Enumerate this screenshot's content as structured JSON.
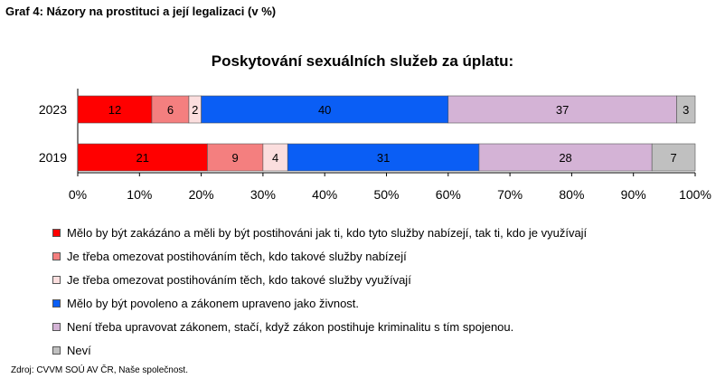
{
  "figure_title": "Graf 4: Názory na prostituci a její legalizaci (v %)",
  "source": "Zdroj: CVVM SOÚ AV ČR, Naše společnost.",
  "chart_data": {
    "type": "bar",
    "orientation": "horizontal",
    "stacked": true,
    "title": "Poskytování sexuálních služeb za úplatu:",
    "categories": [
      "2023",
      "2019"
    ],
    "series": [
      {
        "name": "Mělo by být zakázáno a měli by být postihováni jak ti, kdo tyto služby nabízejí, tak ti, kdo je využívají",
        "color": "#ff0000",
        "values": [
          12,
          21
        ]
      },
      {
        "name": "Je třeba omezovat postihováním těch, kdo takové služby nabízejí",
        "color": "#f47f7f",
        "values": [
          6,
          9
        ]
      },
      {
        "name": "Je třeba omezovat postihováním těch, kdo takové služby využívají",
        "color": "#fbdede",
        "values": [
          2,
          4
        ]
      },
      {
        "name": "Mělo by být povoleno a zákonem upraveno jako živnost.",
        "color": "#0a5ef5",
        "values": [
          40,
          31
        ]
      },
      {
        "name": "Není třeba upravovat zákonem, stačí, když zákon postihuje kriminalitu s tím spojenou.",
        "color": "#d4b3d6",
        "values": [
          37,
          28
        ]
      },
      {
        "name": "Neví",
        "color": "#c0c0c0",
        "values": [
          3,
          7
        ]
      }
    ],
    "xlim": [
      0,
      100
    ],
    "x_ticks": [
      "0%",
      "10%",
      "20%",
      "30%",
      "40%",
      "50%",
      "60%",
      "70%",
      "80%",
      "90%",
      "100%"
    ],
    "legend_position": "bottom-left",
    "grid": false
  }
}
